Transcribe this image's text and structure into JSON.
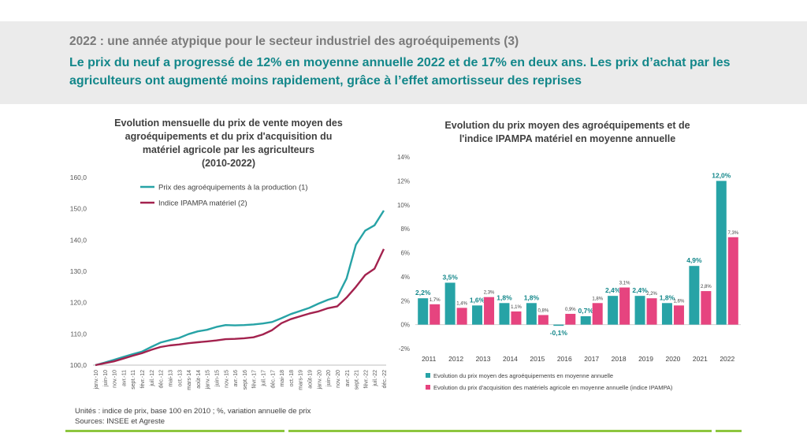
{
  "slide": {
    "subtitle": "2022 : une année atypique pour le secteur industriel des agroéquipements (3)",
    "headline": "Le prix du neuf a progressé de 12% en moyenne annuelle 2022 et de 17% en deux ans. Les prix d’achat par les agriculteurs ont augmenté moins rapidement, grâce à l’effet amortisseur des reprises",
    "footnote_units": "Unités : indice de prix, base 100 en 2010 ; %, variation annuelle de prix",
    "footnote_sources": "Sources:  INSEE et Agreste"
  },
  "colors": {
    "teal": "#27a3a6",
    "maroon": "#a3224e",
    "pink": "#e6447f",
    "headline": "#13878a",
    "rule": "#8dc63f"
  },
  "chart_data": [
    {
      "type": "line",
      "title_lines": [
        "Evolution mensuelle du prix de vente moyen des",
        "agroéquipements et du prix d'acquisition du",
        "matériel agricole par les agriculteurs",
        "(2010-2022)"
      ],
      "ylim": [
        100,
        160
      ],
      "yticks": [
        "100,0",
        "110,0",
        "120,0",
        "130,0",
        "140,0",
        "150,0",
        "160,0"
      ],
      "xticks": [
        "janv.-10",
        "juin-10",
        "nov.-10",
        "avr.-11",
        "sept.-11",
        "févr.-12",
        "juil.-12",
        "déc.-12",
        "mai-13",
        "oct.-13",
        "mars-14",
        "août-14",
        "janv.-15",
        "juin-15",
        "nov.-15",
        "avr.-16",
        "sept.-16",
        "févr.-17",
        "juil.-17",
        "déc.-17",
        "mai-18",
        "oct.-18",
        "mars-19",
        "août-19",
        "janv.-20",
        "juin-20",
        "nov.-20",
        "avr.-21",
        "sept.-21",
        "févr.-22",
        "juil.-22",
        "déc.-22"
      ],
      "legend": "top-left",
      "series": [
        {
          "name": "Prix des agroéquipements à la production (1)",
          "color": "#27a3a6",
          "values": [
            100.0,
            100.8,
            101.7,
            102.6,
            103.5,
            104.3,
            105.8,
            107.2,
            108.0,
            108.7,
            109.9,
            110.8,
            111.3,
            112.2,
            112.8,
            112.7,
            112.8,
            113.0,
            113.3,
            113.8,
            115.0,
            116.3,
            117.3,
            118.3,
            119.7,
            120.9,
            121.8,
            127.7,
            138.5,
            143.0,
            144.7,
            149.4
          ]
        },
        {
          "name": "Indice IPAMPA matériel (2)",
          "color": "#a3224e",
          "values": [
            100.0,
            100.6,
            101.2,
            102.1,
            103.0,
            103.8,
            104.9,
            105.8,
            106.3,
            106.6,
            107.0,
            107.3,
            107.6,
            107.9,
            108.3,
            108.4,
            108.6,
            108.9,
            109.8,
            111.2,
            113.4,
            114.7,
            115.6,
            116.5,
            117.2,
            118.2,
            118.8,
            121.6,
            125.0,
            128.8,
            130.8,
            137.1
          ]
        }
      ]
    },
    {
      "type": "bar",
      "title_lines": [
        "Evolution du prix moyen des agroéquipements et de",
        "l'indice IPAMPA matériel en moyenne annuelle"
      ],
      "ylim": [
        -2,
        14
      ],
      "yticks": [
        "-2%",
        "0%",
        "2%",
        "4%",
        "6%",
        "8%",
        "10%",
        "12%",
        "14%"
      ],
      "categories": [
        "2011",
        "2012",
        "2013",
        "2014",
        "2015",
        "2016",
        "2017",
        "2018",
        "2019",
        "2020",
        "2021",
        "2022"
      ],
      "legend": "bottom",
      "series": [
        {
          "name": "Evolution du prix moyen des agroéquipements en moyenne annuelle",
          "color": "#27a3a6",
          "values": [
            2.2,
            3.5,
            1.6,
            1.8,
            1.8,
            -0.1,
            0.7,
            2.4,
            2.4,
            1.8,
            4.9,
            12.0
          ],
          "labels": [
            "2,2%",
            "3,5%",
            "1,6%",
            "1,8%",
            "1,8%",
            "-0,1%",
            "0,7%",
            "2,4%",
            "2,4%",
            "1,8%",
            "4,9%",
            "12,0%"
          ]
        },
        {
          "name": "Evolution du prix d'acquisition des matériels agricole en moyenne annuelle (indice IPAMPA)",
          "color": "#e6447f",
          "values": [
            1.7,
            1.4,
            2.3,
            1.1,
            0.8,
            0.9,
            1.8,
            3.1,
            2.2,
            1.6,
            2.8,
            7.3
          ],
          "labels": [
            "1,7%",
            "1,4%",
            "2,3%",
            "1,1%",
            "0,8%",
            "0,9%",
            "1,8%",
            "3,1%",
            "2,2%",
            "1,6%",
            "2,8%",
            "7,3%"
          ]
        }
      ]
    }
  ]
}
